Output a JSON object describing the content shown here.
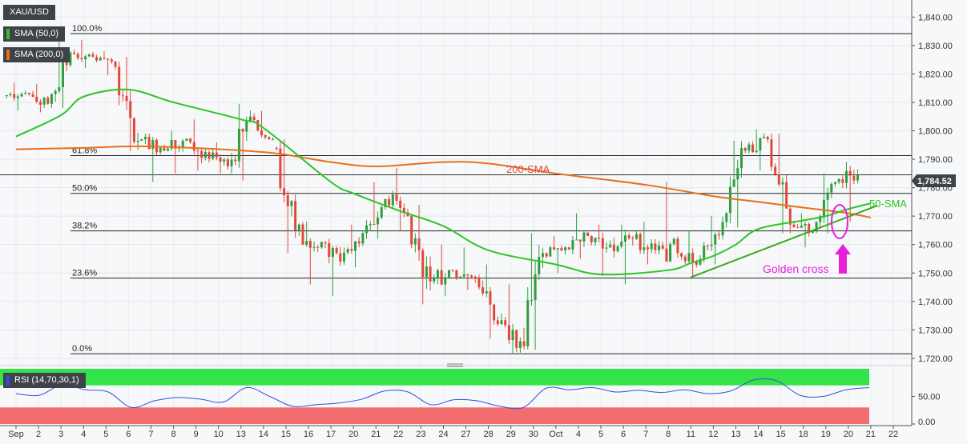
{
  "symbol": "XAU/USD",
  "legend": {
    "sma50": "SMA (50,0)",
    "sma200": "SMA (200,0)",
    "rsi": "RSI (14,70,30,1)"
  },
  "colors": {
    "up": "#2e9e3e",
    "down": "#e0483a",
    "sma50": "#2fc425",
    "sma200": "#e8701a",
    "trendline": "#3aa71f",
    "annotation": "#e81fd9",
    "rsi_line": "#3b49e0",
    "rsi_overbought": "#33e347",
    "rsi_oversold": "#f26d6d",
    "price_tag_bg": "#3d4349"
  },
  "price_tag": "1,784.52",
  "annotations": {
    "sma200_label": "200-SMA",
    "sma50_label": "50-SMA",
    "golden_cross": "Golden cross"
  },
  "fib_levels": [
    {
      "label": "100.0%",
      "price": 1834.2
    },
    {
      "label": "61.8%",
      "price": 1791.3
    },
    {
      "label": "50.0%",
      "price": 1778.0
    },
    {
      "label": "38.2%",
      "price": 1764.8
    },
    {
      "label": "23.6%",
      "price": 1748.2
    },
    {
      "label": "0.0%",
      "price": 1721.6
    }
  ],
  "price_axis": [
    "1,840.00",
    "1,830.00",
    "1,820.00",
    "1,810.00",
    "1,800.00",
    "1,790.00",
    "1,780.00",
    "1,770.00",
    "1,760.00",
    "1,750.00",
    "1,740.00",
    "1,730.00",
    "1,720.00"
  ],
  "rsi_axis": [
    "50.00",
    "0.00"
  ],
  "x_axis": [
    "Sep",
    "2",
    "3",
    "4",
    "5",
    "6",
    "7",
    "8",
    "9",
    "10",
    "13",
    "14",
    "15",
    "16",
    "17",
    "20",
    "21",
    "22",
    "23",
    "24",
    "27",
    "28",
    "29",
    "30",
    "Oct",
    "4",
    "5",
    "6",
    "7",
    "8",
    "11",
    "12",
    "13",
    "14",
    "15",
    "18",
    "19",
    "20",
    "21",
    "22"
  ],
  "chart_data": {
    "type": "candlestick",
    "title": "XAU/USD",
    "session": "4-hour bars",
    "ylim": [
      1718,
      1846
    ],
    "rsi_ylim": [
      0,
      100
    ],
    "rsi_bands": [
      70,
      30
    ],
    "daily_ohlc": [
      {
        "x": "Sep",
        "o": 1812.4,
        "h": 1817.0,
        "l": 1807.0,
        "c": 1813.3
      },
      {
        "x": "2",
        "o": 1813.3,
        "h": 1816.5,
        "l": 1806.5,
        "c": 1809.5
      },
      {
        "x": "3",
        "o": 1809.5,
        "h": 1834.0,
        "l": 1808.0,
        "c": 1827.5
      },
      {
        "x": "4",
        "o": 1827.5,
        "h": 1832.0,
        "l": 1822.0,
        "c": 1826.0
      },
      {
        "x": "5",
        "o": 1826.0,
        "h": 1828.0,
        "l": 1819.5,
        "c": 1822.5
      },
      {
        "x": "6",
        "o": 1822.5,
        "h": 1826.0,
        "l": 1793.0,
        "c": 1796.5
      },
      {
        "x": "7",
        "o": 1796.5,
        "h": 1799.0,
        "l": 1782.0,
        "c": 1794.0
      },
      {
        "x": "8",
        "o": 1794.0,
        "h": 1800.0,
        "l": 1785.0,
        "c": 1796.5
      },
      {
        "x": "9",
        "o": 1796.5,
        "h": 1804.0,
        "l": 1786.0,
        "c": 1792.5
      },
      {
        "x": "10",
        "o": 1792.5,
        "h": 1796.0,
        "l": 1785.0,
        "c": 1787.5
      },
      {
        "x": "13",
        "o": 1787.5,
        "h": 1809.5,
        "l": 1782.5,
        "c": 1805.0
      },
      {
        "x": "14",
        "o": 1805.0,
        "h": 1807.0,
        "l": 1797.0,
        "c": 1794.0
      },
      {
        "x": "15",
        "o": 1794.0,
        "h": 1797.0,
        "l": 1757.0,
        "c": 1765.0
      },
      {
        "x": "16",
        "o": 1765.0,
        "h": 1768.0,
        "l": 1746.0,
        "c": 1759.0
      },
      {
        "x": "17",
        "o": 1759.0,
        "h": 1762.0,
        "l": 1742.0,
        "c": 1754.0
      },
      {
        "x": "20",
        "o": 1754.0,
        "h": 1767.0,
        "l": 1752.0,
        "c": 1764.0
      },
      {
        "x": "21",
        "o": 1764.0,
        "h": 1782.0,
        "l": 1762.0,
        "c": 1776.0
      },
      {
        "x": "22",
        "o": 1776.0,
        "h": 1787.0,
        "l": 1765.0,
        "c": 1770.0
      },
      {
        "x": "23",
        "o": 1770.0,
        "h": 1774.0,
        "l": 1739.0,
        "c": 1747.0
      },
      {
        "x": "24",
        "o": 1747.0,
        "h": 1760.0,
        "l": 1742.0,
        "c": 1751.0
      },
      {
        "x": "27",
        "o": 1751.0,
        "h": 1759.0,
        "l": 1744.0,
        "c": 1748.0
      },
      {
        "x": "28",
        "o": 1748.0,
        "h": 1753.0,
        "l": 1727.0,
        "c": 1732.0
      },
      {
        "x": "29",
        "o": 1732.0,
        "h": 1746.0,
        "l": 1721.5,
        "c": 1726.0
      },
      {
        "x": "30",
        "o": 1726.0,
        "h": 1764.0,
        "l": 1723.0,
        "c": 1757.0
      },
      {
        "x": "Oct",
        "o": 1757.0,
        "h": 1763.0,
        "l": 1750.0,
        "c": 1759.0
      },
      {
        "x": "4",
        "o": 1759.0,
        "h": 1771.0,
        "l": 1755.0,
        "c": 1763.0
      },
      {
        "x": "5",
        "o": 1763.0,
        "h": 1767.0,
        "l": 1749.0,
        "c": 1760.0
      },
      {
        "x": "6",
        "o": 1760.0,
        "h": 1767.0,
        "l": 1746.0,
        "c": 1762.0
      },
      {
        "x": "7",
        "o": 1762.0,
        "h": 1768.0,
        "l": 1753.0,
        "c": 1758.0
      },
      {
        "x": "8",
        "o": 1758.0,
        "h": 1782.0,
        "l": 1754.0,
        "c": 1757.0
      },
      {
        "x": "11",
        "o": 1757.0,
        "h": 1765.0,
        "l": 1749.0,
        "c": 1755.0
      },
      {
        "x": "12",
        "o": 1755.0,
        "h": 1770.0,
        "l": 1753.0,
        "c": 1768.0
      },
      {
        "x": "13",
        "o": 1768.0,
        "h": 1796.5,
        "l": 1766.0,
        "c": 1793.0
      },
      {
        "x": "14",
        "o": 1793.0,
        "h": 1800.5,
        "l": 1786.0,
        "c": 1797.0
      },
      {
        "x": "15",
        "o": 1797.0,
        "h": 1799.0,
        "l": 1764.0,
        "c": 1767.0
      },
      {
        "x": "18",
        "o": 1767.0,
        "h": 1771.0,
        "l": 1759.0,
        "c": 1765.0
      },
      {
        "x": "19",
        "o": 1765.0,
        "h": 1785.0,
        "l": 1764.0,
        "c": 1782.0
      },
      {
        "x": "20",
        "o": 1782.0,
        "h": 1789.0,
        "l": 1768.0,
        "c": 1784.5
      }
    ],
    "sma50": [
      {
        "x": "Sep",
        "y": 1798.0
      },
      {
        "x": "3",
        "y": 1805.5
      },
      {
        "x": "4",
        "y": 1812.0
      },
      {
        "x": "6",
        "y": 1814.5
      },
      {
        "x": "8",
        "y": 1810.0
      },
      {
        "x": "13",
        "y": 1804.0
      },
      {
        "x": "14",
        "y": 1801.0
      },
      {
        "x": "17",
        "y": 1782.0
      },
      {
        "x": "20",
        "y": 1778.0
      },
      {
        "x": "22",
        "y": 1772.0
      },
      {
        "x": "24",
        "y": 1766.5
      },
      {
        "x": "28",
        "y": 1758.0
      },
      {
        "x": "Oct",
        "y": 1753.0
      },
      {
        "x": "5",
        "y": 1749.5
      },
      {
        "x": "8",
        "y": 1751.0
      },
      {
        "x": "11",
        "y": 1753.5
      },
      {
        "x": "12",
        "y": 1756.0
      },
      {
        "x": "13",
        "y": 1760.0
      },
      {
        "x": "14",
        "y": 1765.5
      },
      {
        "x": "18",
        "y": 1768.5
      },
      {
        "x": "19",
        "y": 1770.0
      },
      {
        "x": "20",
        "y": 1772.5
      },
      {
        "x": "21",
        "y": 1774.5
      }
    ],
    "sma200": [
      {
        "x": "Sep",
        "y": 1793.5
      },
      {
        "x": "4",
        "y": 1794.0
      },
      {
        "x": "7",
        "y": 1794.5
      },
      {
        "x": "14",
        "y": 1792.5
      },
      {
        "x": "17",
        "y": 1789.0
      },
      {
        "x": "21",
        "y": 1787.5
      },
      {
        "x": "24",
        "y": 1789.0
      },
      {
        "x": "28",
        "y": 1788.5
      },
      {
        "x": "Oct",
        "y": 1785.0
      },
      {
        "x": "7",
        "y": 1781.0
      },
      {
        "x": "12",
        "y": 1777.0
      },
      {
        "x": "14",
        "y": 1775.0
      },
      {
        "x": "18",
        "y": 1773.0
      },
      {
        "x": "20",
        "y": 1771.0
      },
      {
        "x": "21",
        "y": 1769.5
      }
    ],
    "trendline": [
      {
        "x": "11",
        "y": 1748.5
      },
      {
        "x": "21",
        "y": 1772.0
      }
    ],
    "rsi": [
      55,
      52,
      71,
      62,
      58,
      30,
      42,
      48,
      45,
      40,
      66,
      50,
      32,
      35,
      38,
      45,
      60,
      58,
      35,
      44,
      42,
      32,
      30,
      65,
      62,
      66,
      58,
      61,
      57,
      62,
      55,
      60,
      80,
      78,
      52,
      50,
      62,
      66
    ]
  }
}
